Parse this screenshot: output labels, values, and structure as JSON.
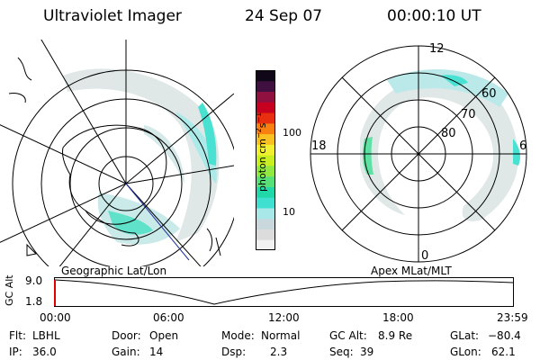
{
  "header": {
    "instrument": "Ultraviolet Imager",
    "date": "24 Sep 07",
    "time": "00:00:10 UT"
  },
  "colorbar": {
    "unit_prefix": "photon cm",
    "unit_exp1": "−2",
    "unit_mid": "s",
    "unit_exp2": "−1",
    "ticks": [
      "100",
      "10"
    ],
    "colors": [
      "#f2f2f2",
      "#dcdcdc",
      "#c8d8dc",
      "#a8e8e8",
      "#3fe0d0",
      "#20d8a8",
      "#58e078",
      "#90e840",
      "#c8f020",
      "#f0f030",
      "#f8c020",
      "#f88010",
      "#e83010",
      "#c80020",
      "#901040",
      "#401040",
      "#100818"
    ]
  },
  "left_map": {
    "label": "Geographic Lat/Lon"
  },
  "right_map": {
    "label": "Apex  MLat/MLT",
    "mlt_labels": {
      "top": "12",
      "bottom": "0",
      "left": "18",
      "right": "6"
    },
    "lat_labels": [
      "60",
      "70",
      "80"
    ]
  },
  "altitude_plot": {
    "ylabel": "GC Alt",
    "yticks": [
      "9.0",
      "1.8"
    ],
    "xticks": [
      "00:00",
      "06:00",
      "12:00",
      "18:00",
      "23:59"
    ]
  },
  "status": {
    "row1": [
      {
        "key": "Flt:",
        "value": "LBHL"
      },
      {
        "key": "Door:",
        "value": "Open"
      },
      {
        "key": "Mode:",
        "value": "Normal"
      },
      {
        "key": "GC Alt:",
        "value": "8.9 Re"
      },
      {
        "key": "GLat:",
        "value": "−80.4"
      }
    ],
    "row2": [
      {
        "key": "IP:",
        "value": "36.0"
      },
      {
        "key": "Gain:",
        "value": "14"
      },
      {
        "key": "Dsp:",
        "value": "2.3"
      },
      {
        "key": "Seq:",
        "value": "39"
      },
      {
        "key": "GLon:",
        "value": "62.1"
      }
    ]
  }
}
